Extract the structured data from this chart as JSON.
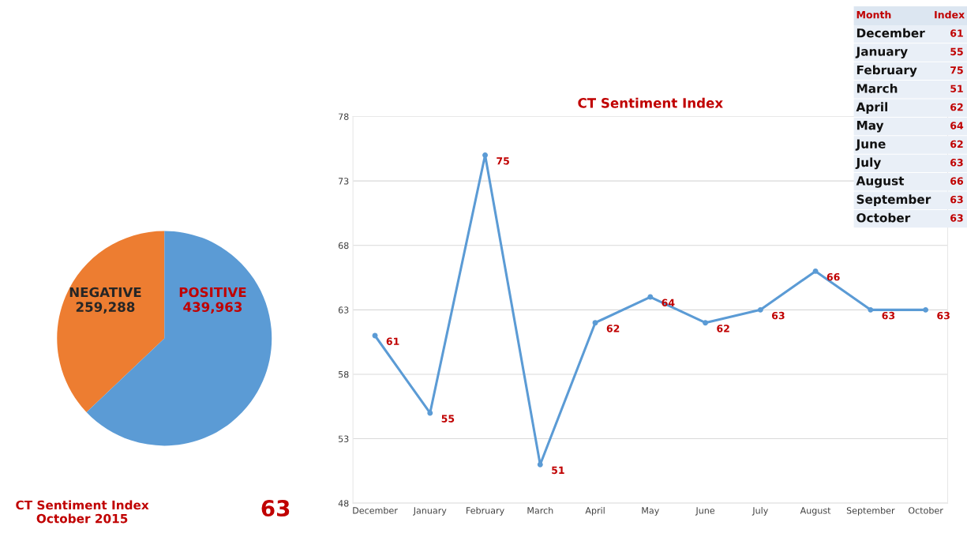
{
  "chart_data": [
    {
      "type": "pie",
      "categories": [
        "NEGATIVE",
        "POSITIVE"
      ],
      "values": [
        259288,
        439963
      ],
      "colors": [
        "#ed7d31",
        "#5b9bd5"
      ],
      "value_labels": [
        "259,288",
        "439,963"
      ],
      "annotations": [
        "CT Sentiment Index\nOctober 2015",
        "63"
      ]
    },
    {
      "type": "line",
      "title": "CT Sentiment Index",
      "categories": [
        "December",
        "January",
        "February",
        "March",
        "April",
        "May",
        "June",
        "July",
        "August",
        "September",
        "October"
      ],
      "series": [
        {
          "color": "#5b9bd5",
          "values": [
            61,
            55,
            75,
            51,
            62,
            64,
            62,
            63,
            66,
            63,
            63
          ]
        }
      ],
      "ylim": [
        48,
        78
      ],
      "yticks": [
        48,
        53,
        58,
        63,
        68,
        73,
        78
      ],
      "grid": "y",
      "marker": "circle",
      "line_style": "solid",
      "data_labels": true
    },
    {
      "type": "other",
      "categories": [
        "December",
        "January",
        "February",
        "March",
        "April",
        "May",
        "June",
        "July",
        "August",
        "September",
        "October"
      ],
      "values": [
        61,
        55,
        75,
        51,
        62,
        64,
        62,
        63,
        66,
        63,
        63
      ],
      "data_labels": true,
      "annotations": [
        "Month",
        "Index"
      ]
    }
  ]
}
